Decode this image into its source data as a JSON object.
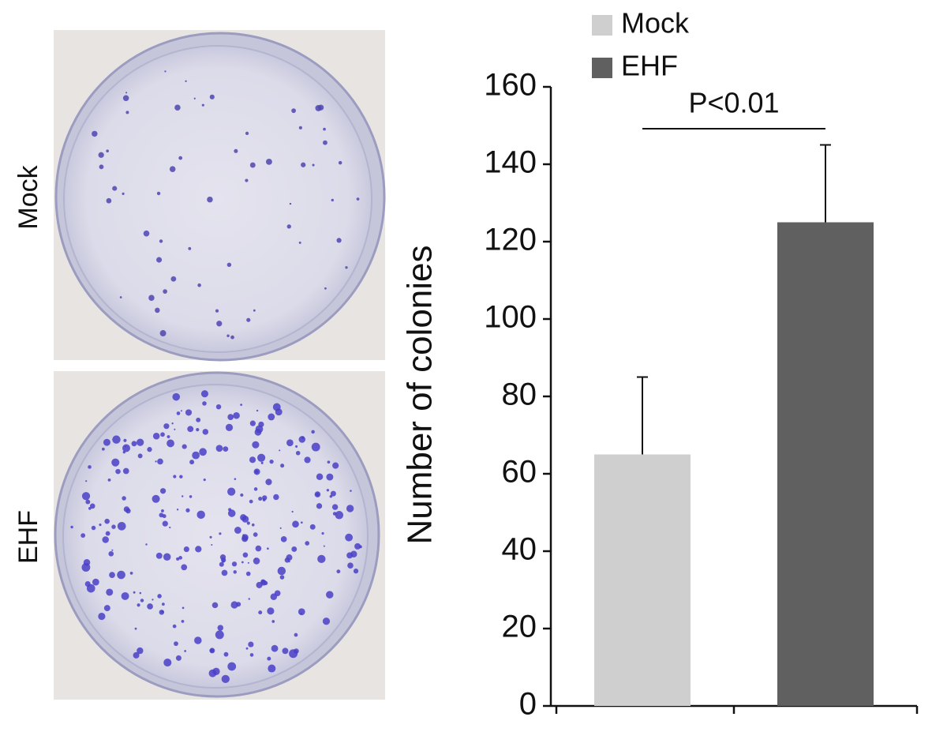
{
  "panels": [
    {
      "label": "Mock"
    },
    {
      "label": "EHF"
    }
  ],
  "chart_data": {
    "type": "bar",
    "y_label": "Number of colonies",
    "categories": [
      null,
      null
    ],
    "series": [
      {
        "name": "Mock",
        "color": "#cfcfcf",
        "values": [
          65,
          null
        ],
        "errors": [
          20,
          null
        ]
      },
      {
        "name": "EHF",
        "color": "#606060",
        "values": [
          null,
          125
        ],
        "errors": [
          null,
          20
        ]
      }
    ],
    "ylim": [
      0,
      160
    ],
    "yticks": [
      0,
      20,
      40,
      60,
      80,
      100,
      120,
      140,
      160
    ],
    "annotation": "P<0.01",
    "legend": "top-left"
  }
}
